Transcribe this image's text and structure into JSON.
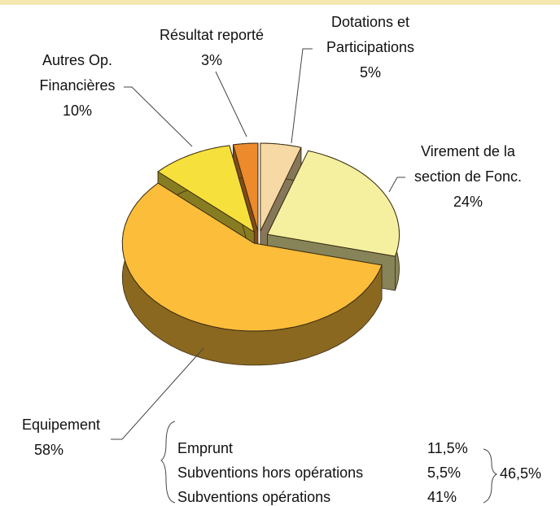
{
  "chart_data": {
    "type": "pie3d",
    "categories": [
      [
        "Dotations et",
        "Participations"
      ],
      [
        "Virement de la",
        "section de Fonc."
      ],
      [
        "Equipement"
      ],
      [
        "Autres Op.",
        "Financières"
      ],
      [
        "Résultat reporté"
      ]
    ],
    "values": [
      5,
      24,
      58,
      10,
      3
    ],
    "value_labels": [
      "5%",
      "24%",
      "58%",
      "10%",
      "3%"
    ],
    "colors": [
      "#f6d9a4",
      "#f4f0a0",
      "#fbbd3a",
      "#f6e13c",
      "#ec8a2c"
    ]
  },
  "note": {
    "rows": [
      {
        "label": "Emprunt",
        "value": "11,5%"
      },
      {
        "label": "Subventions hors opérations",
        "value": "5,5%"
      },
      {
        "label": "Subventions opérations",
        "value": "41%"
      }
    ],
    "total": "46,5%"
  }
}
